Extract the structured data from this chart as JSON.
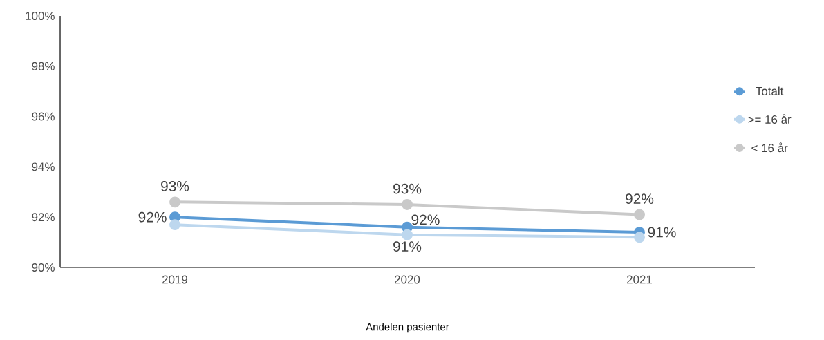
{
  "chart_data": {
    "type": "line",
    "xlabel": "Andelen pasienter",
    "categories": [
      "2019",
      "2020",
      "2021"
    ],
    "series": [
      {
        "name": "Totalt",
        "color": "#5b9bd5",
        "values": [
          92.0,
          91.6,
          91.4
        ],
        "value_labels": [
          "92%",
          "92%",
          "91%"
        ]
      },
      {
        "name": ">= 16 år",
        "color": "#bdd7ee",
        "values": [
          91.7,
          91.3,
          91.2
        ],
        "value_labels": [
          null,
          "91%",
          null
        ]
      },
      {
        "name": "< 16 år",
        "color": "#c9c9c9",
        "values": [
          92.6,
          92.5,
          92.1
        ],
        "value_labels": [
          "93%",
          "93%",
          "92%"
        ]
      }
    ],
    "ylim": [
      90,
      100
    ],
    "yticks": [
      {
        "value": 90,
        "label": "90%"
      },
      {
        "value": 92,
        "label": "92%"
      },
      {
        "value": 94,
        "label": "94%"
      },
      {
        "value": 96,
        "label": "96%"
      },
      {
        "value": 98,
        "label": "98%"
      },
      {
        "value": 100,
        "label": "100%"
      }
    ],
    "legend": "right",
    "marker": "circle",
    "line_style": "solid",
    "grid": false
  }
}
